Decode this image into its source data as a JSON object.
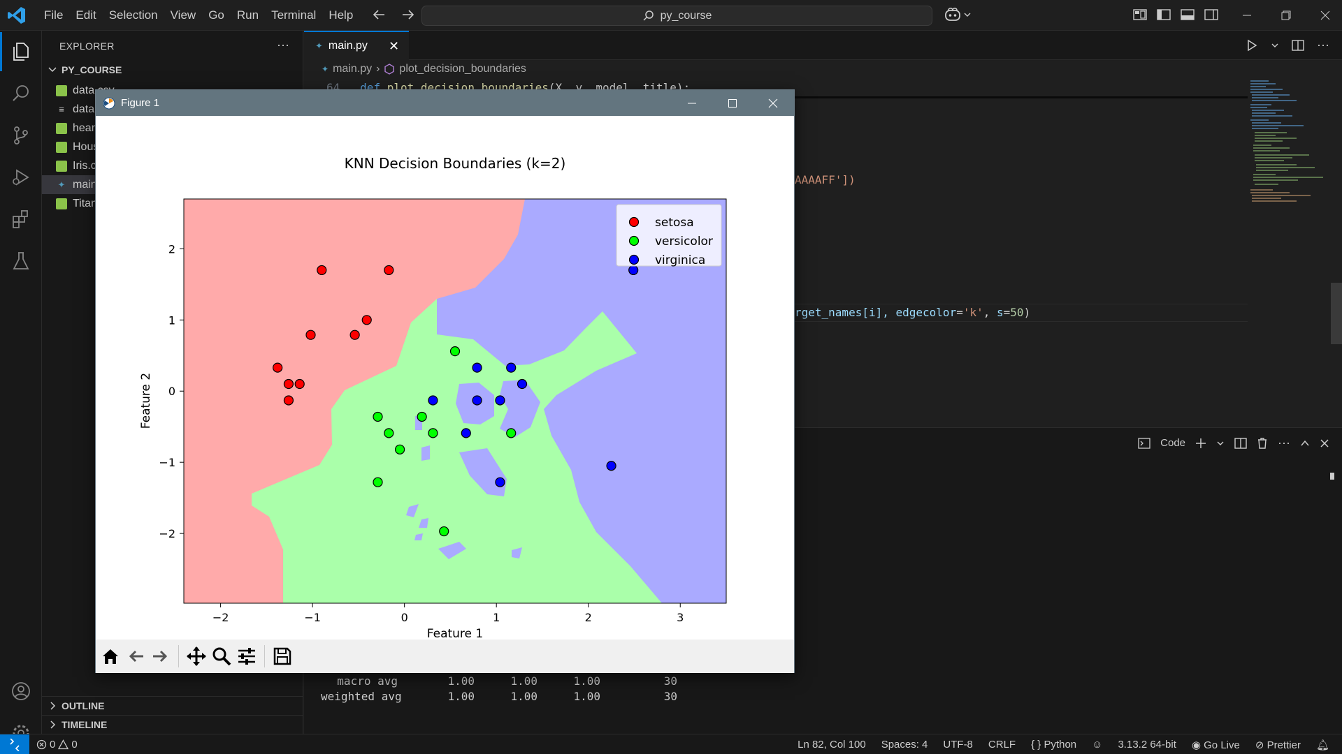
{
  "window": {
    "menu": [
      "File",
      "Edit",
      "Selection",
      "View",
      "Go",
      "Run",
      "Terminal",
      "Help"
    ],
    "search_text": "py_course"
  },
  "sidebar": {
    "header": "EXPLORER",
    "more": "···",
    "project": "PY_COURSE",
    "files": [
      {
        "label": "data.csv",
        "icon": "table-file-icon"
      },
      {
        "label": "datal",
        "icon": "text-file-icon"
      },
      {
        "label": "hear",
        "icon": "table-file-icon"
      },
      {
        "label": "Hous",
        "icon": "table-file-icon"
      },
      {
        "label": "Iris.c",
        "icon": "table-file-icon"
      },
      {
        "label": "main",
        "icon": "python-file-icon",
        "selected": true
      },
      {
        "label": "Titan",
        "icon": "table-file-icon"
      }
    ],
    "sections": {
      "outline": "OUTLINE",
      "timeline": "TIMELINE"
    }
  },
  "editor": {
    "tab": {
      "label": "main.py",
      "close": "✕"
    },
    "breadcrumb": {
      "file": "main.py",
      "symbol": "plot_decision_boundaries"
    },
    "line_number": "64",
    "code_line_64": {
      "kw": "def",
      "fn": "plot_decision_boundaries",
      "args": "(X, y, model, title):"
    },
    "fragment_colors": "AAAAFF'])",
    "fragment_scatter": {
      "a": "rget_names[i], ",
      "b": "edgecolor",
      "c": "=",
      "d": "'k'",
      "e": ", ",
      "f": "s",
      "g": "=",
      "h": "50",
      "i": ")"
    }
  },
  "panel": {
    "terminal_label": "Code",
    "rows": [
      {
        "label": "macro avg",
        "precision": "1.00",
        "recall": "1.00",
        "f1": "1.00",
        "support": "30"
      },
      {
        "label": "weighted avg",
        "precision": "1.00",
        "recall": "1.00",
        "f1": "1.00",
        "support": "30"
      }
    ]
  },
  "statusbar": {
    "errors": "0",
    "warnings": "0",
    "position": "Ln 82, Col 100",
    "spaces": "Spaces: 4",
    "encoding": "UTF-8",
    "eol": "CRLF",
    "language": "Python",
    "interpreter": "3.13.2 64-bit",
    "golive": "Go Live",
    "prettier": "Prettier"
  },
  "figure_window": {
    "title": "Figure 1",
    "toolbar": [
      "home-icon",
      "back-icon",
      "forward-icon",
      "pan-icon",
      "zoom-icon",
      "configure-icon",
      "save-icon"
    ]
  },
  "chart_data": {
    "type": "scatter",
    "title": "KNN Decision Boundaries (k=2)",
    "xlabel": "Feature 1",
    "ylabel": "Feature 2",
    "xlim": [
      -2.4,
      3.5
    ],
    "ylim": [
      -2.98,
      2.7
    ],
    "xticks": [
      -2,
      -1,
      0,
      1,
      2,
      3
    ],
    "yticks": [
      -2,
      -1,
      0,
      1,
      2
    ],
    "legend_position": "top-right",
    "grid": false,
    "region_colors": {
      "setosa": "#FFAAAA",
      "versicolor": "#AAFFAA",
      "virginica": "#AAAAFF"
    },
    "series": [
      {
        "name": "setosa",
        "color": "#ff0000",
        "points": [
          [
            -0.9,
            1.7
          ],
          [
            -0.17,
            1.7
          ],
          [
            -0.41,
            1.0
          ],
          [
            -1.02,
            0.79
          ],
          [
            -0.54,
            0.79
          ],
          [
            -1.38,
            0.33
          ],
          [
            -1.26,
            0.1
          ],
          [
            -1.14,
            0.1
          ],
          [
            -1.26,
            -0.13
          ]
        ]
      },
      {
        "name": "versicolor",
        "color": "#00ff00",
        "points": [
          [
            0.55,
            0.56
          ],
          [
            -0.29,
            -0.36
          ],
          [
            0.19,
            -0.36
          ],
          [
            -0.17,
            -0.59
          ],
          [
            0.31,
            -0.59
          ],
          [
            1.16,
            -0.59
          ],
          [
            -0.05,
            -0.82
          ],
          [
            -0.29,
            -1.28
          ],
          [
            0.43,
            -1.97
          ]
        ]
      },
      {
        "name": "virginica",
        "color": "#0000ff",
        "points": [
          [
            2.49,
            1.7
          ],
          [
            0.79,
            0.33
          ],
          [
            1.16,
            0.33
          ],
          [
            1.28,
            0.1
          ],
          [
            0.31,
            -0.13
          ],
          [
            0.79,
            -0.13
          ],
          [
            1.04,
            -0.13
          ],
          [
            0.67,
            -0.59
          ],
          [
            2.25,
            -1.05
          ],
          [
            1.04,
            -1.28
          ]
        ]
      }
    ]
  }
}
